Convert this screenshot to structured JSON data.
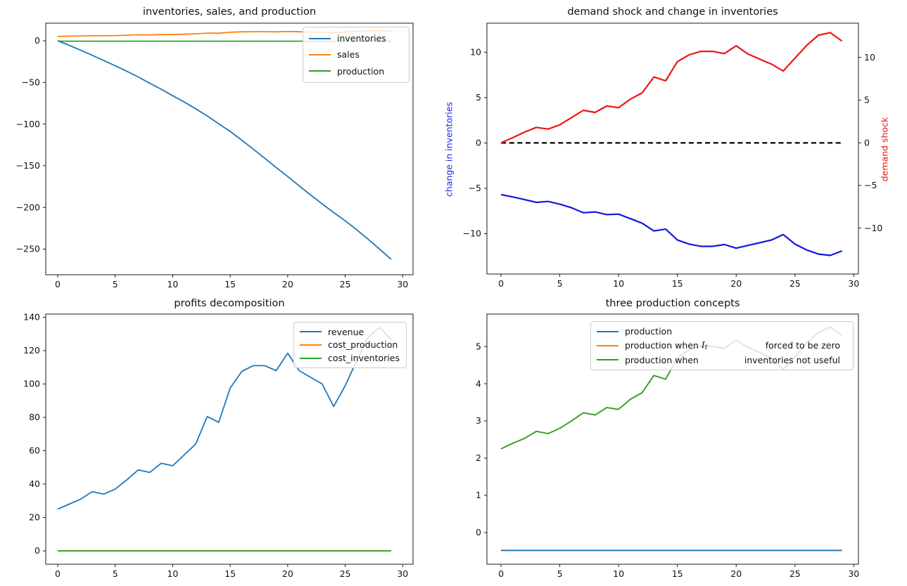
{
  "figure": {
    "background": "#ffffff"
  },
  "palette": {
    "mpl_blue": "#1f77b4",
    "mpl_orange": "#ff7f0e",
    "mpl_green": "#2ca02c",
    "pure_blue": "#1515e0",
    "pure_red": "#f01414",
    "black": "#000000"
  },
  "chart_data": [
    {
      "id": "inventories-sales-production",
      "type": "line",
      "title": "inventories, sales, and production",
      "xlabel": "",
      "ylabel": "",
      "xlim": [
        -1.04,
        30.9
      ],
      "ylim": [
        -280.8,
        21.1
      ],
      "xticks": [
        0,
        5,
        10,
        15,
        20,
        25,
        30
      ],
      "yticks": [
        0,
        -50,
        -100,
        -150,
        -200,
        -250
      ],
      "grid": false,
      "legend_position": "upper right",
      "x": [
        0,
        1,
        2,
        3,
        4,
        5,
        6,
        7,
        8,
        9,
        10,
        11,
        12,
        13,
        14,
        15,
        16,
        17,
        18,
        19,
        20,
        21,
        22,
        23,
        24,
        25,
        26,
        27,
        28,
        29
      ],
      "series": [
        {
          "name": "inventories",
          "color": "mpl_blue",
          "width": 1.8,
          "values": [
            0,
            -5.5,
            -11.3,
            -17.4,
            -23.7,
            -30,
            -36.5,
            -43.4,
            -50.9,
            -58.2,
            -65.9,
            -73.5,
            -81.6,
            -90.2,
            -99.6,
            -108.8,
            -119.2,
            -130,
            -141,
            -152.1,
            -162.9,
            -174.2,
            -185.1,
            -195.8,
            -206.2,
            -216,
            -226.8,
            -238.3,
            -250.2,
            -262.3
          ]
        },
        {
          "name": "sales",
          "color": "mpl_orange",
          "width": 1.8,
          "values": [
            5.2,
            5.5,
            5.8,
            6.1,
            6,
            6.3,
            6.7,
            7.2,
            7.1,
            7.4,
            7.4,
            7.9,
            8.4,
            9.2,
            9,
            10.2,
            10.7,
            10.9,
            10.9,
            10.7,
            11.1,
            10.8,
            10.5,
            10.2,
            9.6,
            10.7,
            11.3,
            11.8,
            11.9,
            11.4
          ]
        },
        {
          "name": "production",
          "color": "mpl_green",
          "width": 1.8,
          "values": [
            -0.48,
            -0.48,
            -0.48,
            -0.48,
            -0.48,
            -0.48,
            -0.48,
            -0.48,
            -0.48,
            -0.48,
            -0.48,
            -0.48,
            -0.48,
            -0.48,
            -0.48,
            -0.48,
            -0.48,
            -0.48,
            -0.48,
            -0.48,
            -0.48,
            -0.48,
            -0.48,
            -0.48,
            -0.48,
            -0.48,
            -0.48,
            -0.48,
            -0.48,
            -0.48
          ]
        }
      ],
      "legend_entries": [
        {
          "text": "inventories",
          "color": "mpl_blue"
        },
        {
          "text": "sales",
          "color": "mpl_orange"
        },
        {
          "text": "production",
          "color": "mpl_green"
        }
      ]
    },
    {
      "id": "demand-shock-change-inventories",
      "type": "line",
      "title": "demand shock and change in inventories",
      "xlabel": "",
      "ylabel_left": "change in inventories",
      "ylabel_left_color": "#2222ee",
      "ylabel_right": "demand shock",
      "ylabel_right_color": "#ee1111",
      "xlim": [
        -1.2,
        30.4
      ],
      "ylim": [
        -14.45,
        13.2
      ],
      "ylim_right": [
        -15.37,
        14.0
      ],
      "xticks": [
        0,
        5,
        10,
        15,
        20,
        25,
        30
      ],
      "yticks": [
        10,
        5,
        0,
        -5,
        -10
      ],
      "yticks_right": [
        10,
        5,
        0,
        -5,
        -10
      ],
      "grid": false,
      "x": [
        0,
        1,
        2,
        3,
        4,
        5,
        6,
        7,
        8,
        9,
        10,
        11,
        12,
        13,
        14,
        15,
        16,
        17,
        18,
        19,
        20,
        21,
        22,
        23,
        24,
        25,
        26,
        27,
        28,
        29
      ],
      "series": [
        {
          "name": "zero line",
          "color": "black",
          "width": 2.2,
          "dashed": true,
          "axis": "left",
          "values": [
            0,
            0,
            0,
            0,
            0,
            0,
            0,
            0,
            0,
            0,
            0,
            0,
            0,
            0,
            0,
            0,
            0,
            0,
            0,
            0,
            0,
            0,
            0,
            0,
            0,
            0,
            0,
            0,
            0,
            0
          ]
        },
        {
          "name": "change in inventories",
          "color": "pure_blue",
          "width": 2.2,
          "axis": "left",
          "values": [
            -5.7,
            -5.95,
            -6.25,
            -6.55,
            -6.45,
            -6.75,
            -7.15,
            -7.7,
            -7.6,
            -7.9,
            -7.85,
            -8.35,
            -8.85,
            -9.7,
            -9.5,
            -10.7,
            -11.15,
            -11.4,
            -11.4,
            -11.2,
            -11.6,
            -11.3,
            -11,
            -10.7,
            -10.1,
            -11.15,
            -11.8,
            -12.25,
            -12.4,
            -11.9
          ]
        },
        {
          "name": "demand shock",
          "color": "pure_red",
          "width": 2.2,
          "axis": "right",
          "values": [
            0,
            0.6,
            1.25,
            1.8,
            1.6,
            2.1,
            2.95,
            3.8,
            3.55,
            4.3,
            4.1,
            5.1,
            5.85,
            7.7,
            7.25,
            9.5,
            10.3,
            10.7,
            10.7,
            10.45,
            11.35,
            10.4,
            9.8,
            9.2,
            8.4,
            9.9,
            11.4,
            12.6,
            12.9,
            11.9
          ]
        }
      ]
    },
    {
      "id": "profits-decomposition",
      "type": "line",
      "title": "profits decomposition",
      "xlabel": "",
      "ylabel": "",
      "xlim": [
        -1.04,
        30.9
      ],
      "ylim": [
        -8,
        141.9
      ],
      "xticks": [
        0,
        5,
        10,
        15,
        20,
        25,
        30
      ],
      "yticks": [
        140,
        120,
        100,
        80,
        60,
        40,
        20,
        0
      ],
      "grid": false,
      "legend_position": "upper right",
      "x": [
        0,
        1,
        2,
        3,
        4,
        5,
        6,
        7,
        8,
        9,
        10,
        11,
        12,
        13,
        14,
        15,
        16,
        17,
        18,
        19,
        20,
        21,
        22,
        23,
        24,
        25,
        26,
        27,
        28,
        29
      ],
      "series": [
        {
          "name": "revenue",
          "color": "mpl_blue",
          "width": 1.8,
          "values": [
            25,
            28,
            31,
            35.5,
            34,
            37,
            42.5,
            48.5,
            47,
            52.5,
            51,
            57.5,
            64,
            80.5,
            77,
            97.5,
            107.5,
            111,
            111,
            108,
            118.5,
            108,
            104,
            100,
            86.5,
            99,
            114,
            128,
            134,
            126.5
          ]
        },
        {
          "name": "cost_production",
          "color": "mpl_orange",
          "width": 1.8,
          "values": [
            0,
            0,
            0,
            0,
            0,
            0,
            0,
            0,
            0,
            0,
            0,
            0,
            0,
            0,
            0,
            0,
            0,
            0,
            0,
            0,
            0,
            0,
            0,
            0,
            0,
            0,
            0,
            0,
            0,
            0
          ]
        },
        {
          "name": "cost_inventories",
          "color": "mpl_green",
          "width": 1.8,
          "values": [
            0,
            0,
            0,
            0,
            0,
            0,
            0,
            0,
            0,
            0,
            0,
            0,
            0,
            0,
            0,
            0,
            0,
            0,
            0,
            0,
            0,
            0,
            0,
            0,
            0,
            0,
            0,
            0,
            0,
            0
          ]
        }
      ],
      "legend_entries": [
        {
          "text": "revenue",
          "color": "mpl_blue"
        },
        {
          "text": "cost_production",
          "color": "mpl_orange"
        },
        {
          "text": "cost_inventories",
          "color": "mpl_green"
        }
      ]
    },
    {
      "id": "three-production-concepts",
      "type": "line",
      "title": "three production concepts",
      "xlabel": "",
      "ylabel": "",
      "xlim": [
        -1.2,
        30.4
      ],
      "ylim": [
        -0.85,
        5.87
      ],
      "xticks": [
        0,
        5,
        10,
        15,
        20,
        25,
        30
      ],
      "yticks": [
        5,
        4,
        3,
        2,
        1,
        0
      ],
      "grid": false,
      "legend_position": "upper center",
      "x": [
        0,
        1,
        2,
        3,
        4,
        5,
        6,
        7,
        8,
        9,
        10,
        11,
        12,
        13,
        14,
        15,
        16,
        17,
        18,
        19,
        20,
        21,
        22,
        23,
        24,
        25,
        26,
        27,
        28,
        29
      ],
      "series": [
        {
          "name": "production",
          "color": "mpl_blue",
          "width": 2.0,
          "values": [
            -0.48,
            -0.48,
            -0.48,
            -0.48,
            -0.48,
            -0.48,
            -0.48,
            -0.48,
            -0.48,
            -0.48,
            -0.48,
            -0.48,
            -0.48,
            -0.48,
            -0.48,
            -0.48,
            -0.48,
            -0.48,
            -0.48,
            -0.48,
            -0.48,
            -0.48,
            -0.48,
            -0.48,
            -0.48,
            -0.48,
            -0.48,
            -0.48,
            -0.48,
            -0.48
          ]
        },
        {
          "name": "production when It forced to be zero",
          "color": "mpl_orange",
          "width": 1.8,
          "values": [
            2.25,
            2.4,
            2.53,
            2.72,
            2.66,
            2.8,
            3,
            3.22,
            3.16,
            3.36,
            3.31,
            3.58,
            3.76,
            4.22,
            4.12,
            4.7,
            4.9,
            5.02,
            5,
            4.95,
            5.17,
            4.98,
            4.84,
            4.68,
            4.38,
            4.72,
            5.1,
            5.38,
            5.52,
            5.3
          ]
        },
        {
          "name": "production when inventories not useful",
          "color": "mpl_green",
          "width": 1.8,
          "values": [
            2.25,
            2.4,
            2.53,
            2.72,
            2.66,
            2.8,
            3,
            3.22,
            3.16,
            3.36,
            3.31,
            3.58,
            3.76,
            4.22,
            4.12,
            4.7,
            4.9,
            5.02,
            5,
            4.95,
            5.17,
            4.98,
            4.84,
            4.68,
            4.38,
            4.72,
            5.1,
            5.38,
            5.52,
            5.3
          ]
        }
      ],
      "legend_entries": [
        {
          "text": "production",
          "color": "mpl_blue"
        },
        {
          "text": "production when",
          "math_var": "I",
          "math_sub": "t",
          "text2": "forced to be zero",
          "color": "mpl_orange"
        },
        {
          "text": "production when",
          "text2": "inventories not useful",
          "color": "mpl_green"
        }
      ]
    }
  ]
}
